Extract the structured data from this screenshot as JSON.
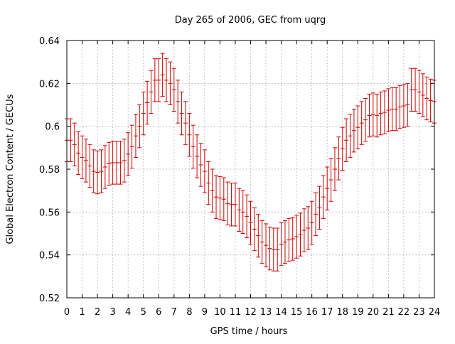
{
  "chart_data": {
    "type": "scatter",
    "title": "Day 265 of 2006, GEC from uqrg",
    "xlabel": "GPS time / hours",
    "ylabel": "Global Electron Content / GECUs",
    "xlim": [
      0,
      24
    ],
    "ylim": [
      0.52,
      0.64
    ],
    "xticks": [
      "0",
      "1",
      "2",
      "3",
      "4",
      "5",
      "6",
      "7",
      "8",
      "9",
      "10",
      "11",
      "12",
      "13",
      "14",
      "15",
      "16",
      "17",
      "18",
      "19",
      "20",
      "21",
      "22",
      "23",
      "24"
    ],
    "yticks": [
      "0.52",
      "0.54",
      "0.56",
      "0.58",
      "0.6",
      "0.62",
      "0.64"
    ],
    "grid": true,
    "series": [
      {
        "name": "GEC",
        "color": "#cc0000",
        "error": 0.01,
        "x": [
          0,
          0.25,
          0.5,
          0.75,
          1,
          1.25,
          1.5,
          1.75,
          2,
          2.25,
          2.5,
          2.75,
          3,
          3.25,
          3.5,
          3.75,
          4,
          4.25,
          4.5,
          4.75,
          5,
          5.25,
          5.5,
          5.75,
          6,
          6.25,
          6.5,
          6.75,
          7,
          7.25,
          7.5,
          7.75,
          8,
          8.25,
          8.5,
          8.75,
          9,
          9.25,
          9.5,
          9.75,
          10,
          10.25,
          10.5,
          10.75,
          11,
          11.25,
          11.5,
          11.75,
          12,
          12.25,
          12.5,
          12.75,
          13,
          13.25,
          13.5,
          13.75,
          14,
          14.25,
          14.5,
          14.75,
          15,
          15.25,
          15.5,
          15.75,
          16,
          16.25,
          16.5,
          16.75,
          17,
          17.25,
          17.5,
          17.75,
          18,
          18.25,
          18.5,
          18.75,
          19,
          19.25,
          19.5,
          19.75,
          20,
          20.25,
          20.5,
          20.75,
          21,
          21.25,
          21.5,
          21.75,
          22,
          22.25,
          22.5,
          22.75,
          23,
          23.25,
          23.5,
          23.75,
          24
        ],
        "y": [
          0.5935,
          0.5935,
          0.5915,
          0.5875,
          0.5855,
          0.584,
          0.5815,
          0.579,
          0.5785,
          0.579,
          0.581,
          0.5825,
          0.583,
          0.583,
          0.583,
          0.584,
          0.587,
          0.5905,
          0.5955,
          0.6,
          0.606,
          0.611,
          0.616,
          0.6215,
          0.6215,
          0.624,
          0.6215,
          0.62,
          0.617,
          0.6115,
          0.606,
          0.6015,
          0.596,
          0.5905,
          0.586,
          0.582,
          0.579,
          0.5735,
          0.57,
          0.567,
          0.5665,
          0.566,
          0.564,
          0.5635,
          0.5635,
          0.561,
          0.56,
          0.558,
          0.555,
          0.552,
          0.549,
          0.546,
          0.5445,
          0.543,
          0.5425,
          0.5425,
          0.545,
          0.546,
          0.547,
          0.5475,
          0.5485,
          0.5495,
          0.5515,
          0.5525,
          0.555,
          0.559,
          0.562,
          0.567,
          0.571,
          0.575,
          0.58,
          0.585,
          0.5895,
          0.5935,
          0.5955,
          0.598,
          0.5995,
          0.6015,
          0.603,
          0.605,
          0.6055,
          0.605,
          0.606,
          0.6065,
          0.6075,
          0.608,
          0.608,
          0.609,
          0.6095,
          0.61,
          0.617,
          0.617,
          0.616,
          0.6145,
          0.613,
          0.612,
          0.6115
        ]
      }
    ]
  }
}
